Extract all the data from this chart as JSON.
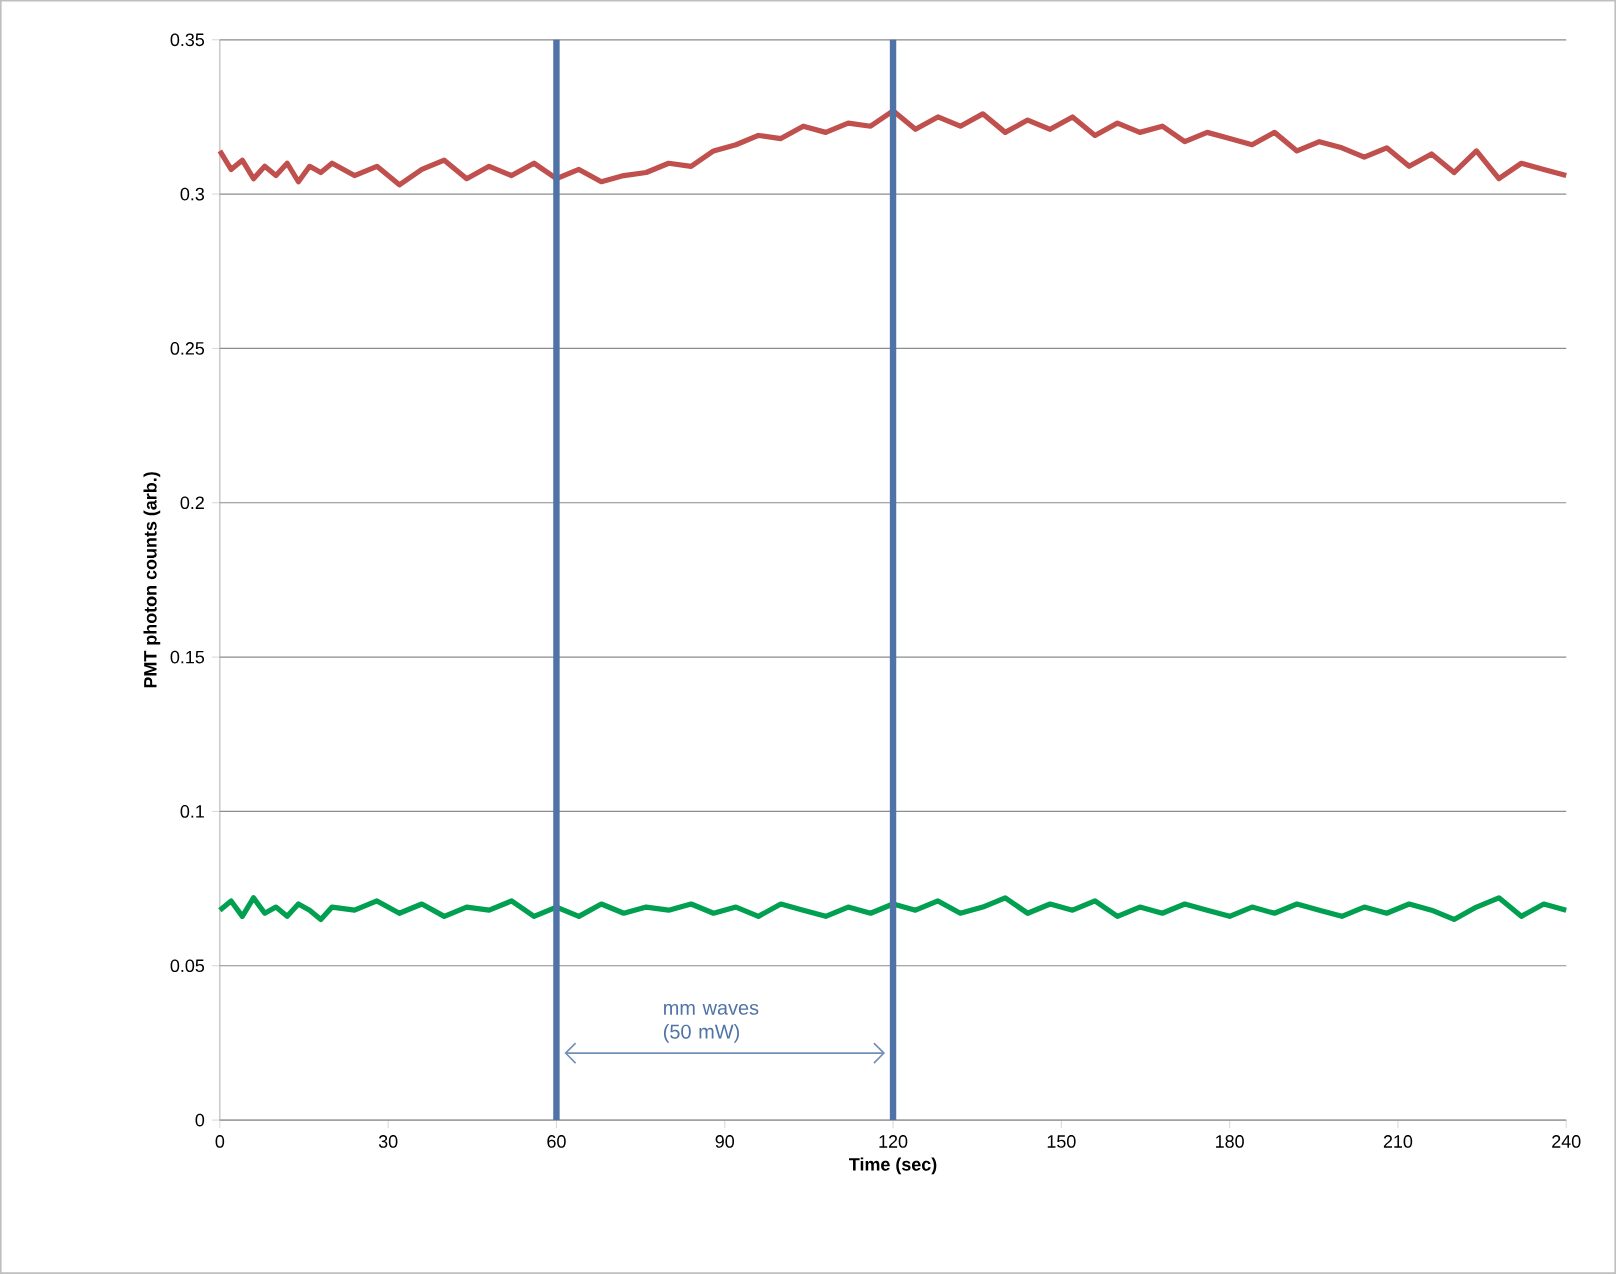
{
  "chart_data": {
    "type": "line",
    "xlabel": "Time (sec)",
    "ylabel": "PMT photon counts (arb.)",
    "xlim": [
      0,
      240
    ],
    "ylim": [
      0,
      0.35
    ],
    "xticks": [
      0,
      30,
      60,
      90,
      120,
      150,
      180,
      210,
      240
    ],
    "yticks": [
      0,
      0.05,
      0.1,
      0.15,
      0.2,
      0.25,
      0.3,
      0.35
    ],
    "grid": "y",
    "marker": "none",
    "line_style": "solid",
    "x": [
      0,
      2,
      4,
      6,
      8,
      10,
      12,
      14,
      16,
      18,
      20,
      24,
      28,
      32,
      36,
      40,
      44,
      48,
      52,
      56,
      60,
      64,
      68,
      72,
      76,
      80,
      84,
      88,
      92,
      96,
      100,
      104,
      108,
      112,
      116,
      120,
      124,
      128,
      132,
      136,
      140,
      144,
      148,
      152,
      156,
      160,
      164,
      168,
      172,
      176,
      180,
      184,
      188,
      192,
      196,
      200,
      204,
      208,
      212,
      216,
      220,
      224,
      228,
      232,
      236,
      240
    ],
    "series": [
      {
        "color": "#c0504d",
        "values": [
          0.314,
          0.308,
          0.311,
          0.305,
          0.309,
          0.306,
          0.31,
          0.304,
          0.309,
          0.307,
          0.31,
          0.306,
          0.309,
          0.303,
          0.308,
          0.311,
          0.305,
          0.309,
          0.306,
          0.31,
          0.305,
          0.308,
          0.304,
          0.306,
          0.307,
          0.31,
          0.309,
          0.314,
          0.316,
          0.319,
          0.318,
          0.322,
          0.32,
          0.323,
          0.322,
          0.327,
          0.321,
          0.325,
          0.322,
          0.326,
          0.32,
          0.324,
          0.321,
          0.325,
          0.319,
          0.323,
          0.32,
          0.322,
          0.317,
          0.32,
          0.318,
          0.316,
          0.32,
          0.314,
          0.317,
          0.315,
          0.312,
          0.315,
          0.309,
          0.313,
          0.307,
          0.314,
          0.305,
          0.31,
          0.308,
          0.306
        ]
      },
      {
        "color": "#00a050",
        "values": [
          0.068,
          0.071,
          0.066,
          0.072,
          0.067,
          0.069,
          0.066,
          0.07,
          0.068,
          0.065,
          0.069,
          0.068,
          0.071,
          0.067,
          0.07,
          0.066,
          0.069,
          0.068,
          0.071,
          0.066,
          0.069,
          0.066,
          0.07,
          0.067,
          0.069,
          0.068,
          0.07,
          0.067,
          0.069,
          0.066,
          0.07,
          0.068,
          0.066,
          0.069,
          0.067,
          0.07,
          0.068,
          0.071,
          0.067,
          0.069,
          0.072,
          0.067,
          0.07,
          0.068,
          0.071,
          0.066,
          0.069,
          0.067,
          0.07,
          0.068,
          0.066,
          0.069,
          0.067,
          0.07,
          0.068,
          0.066,
          0.069,
          0.067,
          0.07,
          0.068,
          0.065,
          0.069,
          0.072,
          0.066,
          0.07,
          0.068
        ]
      }
    ],
    "ref_lines": [
      {
        "axis": "x",
        "value": 60,
        "color": "#4f73a6"
      },
      {
        "axis": "x",
        "value": 120,
        "color": "#4f73a6"
      }
    ],
    "annotations": [
      "mm waves (50 mW)"
    ]
  }
}
